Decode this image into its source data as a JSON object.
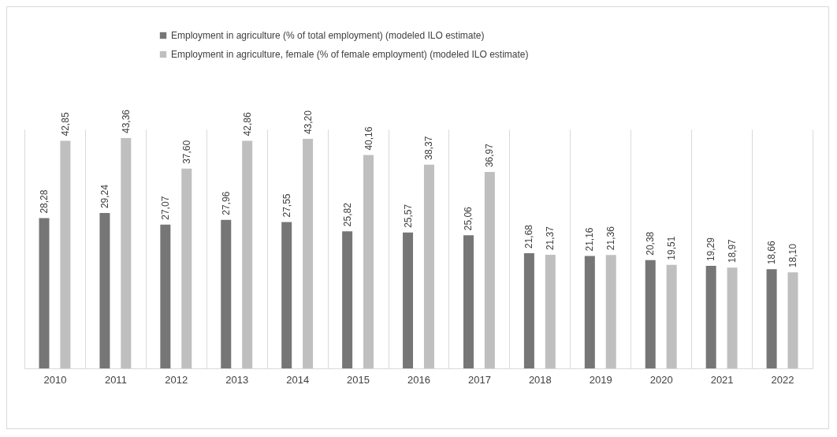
{
  "chart_data": {
    "type": "bar",
    "categories": [
      "2010",
      "2011",
      "2012",
      "2013",
      "2014",
      "2015",
      "2016",
      "2017",
      "2018",
      "2019",
      "2020",
      "2021",
      "2022"
    ],
    "series": [
      {
        "name": "Employment in agriculture (% of total employment) (modeled ILO estimate)",
        "color": "#767676",
        "values": [
          28.28,
          29.24,
          27.07,
          27.96,
          27.55,
          25.82,
          25.57,
          25.06,
          21.68,
          21.16,
          20.38,
          19.29,
          18.66
        ],
        "value_labels": [
          "28,28",
          "29,24",
          "27,07",
          "27,96",
          "27,55",
          "25,82",
          "25,57",
          "25,06",
          "21,68",
          "21,16",
          "20,38",
          "19,29",
          "18,66"
        ]
      },
      {
        "name": "Employment in agriculture, female (% of female employment) (modeled ILO estimate)",
        "color": "#bfbfbf",
        "values": [
          42.85,
          43.36,
          37.6,
          42.86,
          43.2,
          40.16,
          38.37,
          36.97,
          21.37,
          21.36,
          19.51,
          18.97,
          18.1
        ],
        "value_labels": [
          "42,85",
          "43,36",
          "37,60",
          "42,86",
          "43,20",
          "40,16",
          "38,37",
          "36,97",
          "21,37",
          "21,36",
          "19,51",
          "18,97",
          "18,10"
        ]
      }
    ],
    "legend": "top",
    "grid": "x"
  }
}
